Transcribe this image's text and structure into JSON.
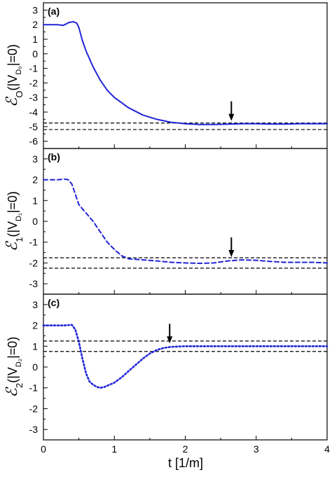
{
  "chart_data": {
    "type": "line",
    "xlabel": "t [1/m]",
    "xlim": [
      0,
      4
    ],
    "x_ticks": [
      0,
      1,
      2,
      3,
      4
    ],
    "panels": [
      {
        "tag": "(a)",
        "ylabel": {
          "sym": "ℰ",
          "sub": "O",
          "paren_open": "(|V",
          "vsub": "D₀",
          "paren_close": "|=0)"
        },
        "ylim": [
          -6.5,
          3.5
        ],
        "y_ticks": [
          -6,
          -5,
          -4,
          -3,
          -2,
          -1,
          0,
          1,
          2,
          3
        ],
        "line_style": "solid",
        "color": "#1f24d6",
        "series": {
          "x": [
            0,
            0.1,
            0.2,
            0.28,
            0.32,
            0.36,
            0.42,
            0.47,
            0.5,
            0.55,
            0.6,
            0.7,
            0.8,
            0.9,
            1.0,
            1.2,
            1.4,
            1.6,
            1.8,
            2.0,
            2.2,
            2.4,
            2.6,
            2.8,
            3.0,
            3.2,
            3.4,
            3.6,
            3.8,
            4.0
          ],
          "y": [
            2.0,
            2.0,
            2.0,
            1.95,
            2.05,
            2.15,
            2.2,
            2.1,
            1.8,
            0.9,
            0.2,
            -0.9,
            -1.8,
            -2.5,
            -3.0,
            -3.7,
            -4.2,
            -4.5,
            -4.7,
            -4.8,
            -4.85,
            -4.85,
            -4.83,
            -4.8,
            -4.8,
            -4.82,
            -4.82,
            -4.8,
            -4.8,
            -4.8
          ]
        },
        "hlines": [
          -4.75,
          -5.2
        ],
        "arrow": {
          "x": 2.65,
          "y": -4.8
        }
      },
      {
        "tag": "(b)",
        "ylabel": {
          "sym": "ℰ",
          "sub": "1",
          "paren_open": "(|V",
          "vsub": "D₁",
          "paren_close": "|=0)"
        },
        "ylim": [
          -3.5,
          3.5
        ],
        "y_ticks": [
          -3,
          -2,
          -1,
          0,
          1,
          2,
          3
        ],
        "line_style": "dashed",
        "color": "#1f24d6",
        "series": {
          "x": [
            0,
            0.1,
            0.2,
            0.3,
            0.35,
            0.4,
            0.45,
            0.5,
            0.55,
            0.6,
            0.7,
            0.8,
            0.9,
            1.0,
            1.1,
            1.2,
            1.4,
            1.6,
            1.8,
            2.0,
            2.2,
            2.4,
            2.6,
            2.8,
            3.0,
            3.2,
            3.4,
            3.6,
            3.8,
            4.0
          ],
          "y": [
            2.0,
            2.0,
            2.0,
            2.03,
            2.0,
            1.8,
            1.3,
            0.8,
            0.6,
            0.4,
            0.0,
            -0.5,
            -1.0,
            -1.35,
            -1.65,
            -1.8,
            -1.85,
            -1.9,
            -1.97,
            -2.0,
            -2.02,
            -2.0,
            -1.9,
            -1.85,
            -1.87,
            -1.93,
            -1.97,
            -1.97,
            -1.97,
            -2.0
          ]
        },
        "hlines": [
          -1.75,
          -2.25
        ],
        "arrow": {
          "x": 2.65,
          "y": -1.85
        }
      },
      {
        "tag": "(c)",
        "ylabel": {
          "sym": "ℰ",
          "sub": "2",
          "paren_open": "(|V",
          "vsub": "D₂",
          "paren_close": "|=0)"
        },
        "ylim": [
          -3.5,
          3.5
        ],
        "y_ticks": [
          -3,
          -2,
          -1,
          0,
          1,
          2,
          3
        ],
        "line_style": "dotted",
        "color": "#1f24d6",
        "series": {
          "x": [
            0,
            0.1,
            0.2,
            0.3,
            0.4,
            0.45,
            0.5,
            0.55,
            0.6,
            0.65,
            0.7,
            0.75,
            0.8,
            0.85,
            0.9,
            1.0,
            1.1,
            1.2,
            1.3,
            1.4,
            1.5,
            1.6,
            1.7,
            1.8,
            2.0,
            2.5,
            3.0,
            3.5,
            4.0
          ],
          "y": [
            2.0,
            2.0,
            2.0,
            2.0,
            2.03,
            1.8,
            1.2,
            0.4,
            -0.3,
            -0.7,
            -0.85,
            -0.95,
            -1.0,
            -0.97,
            -0.9,
            -0.75,
            -0.5,
            -0.2,
            0.1,
            0.4,
            0.65,
            0.82,
            0.92,
            0.97,
            1.0,
            1.0,
            1.0,
            1.0,
            1.0
          ]
        },
        "hlines": [
          1.25,
          0.75
        ],
        "arrow": {
          "x": 1.78,
          "y": 1.0
        }
      }
    ]
  }
}
